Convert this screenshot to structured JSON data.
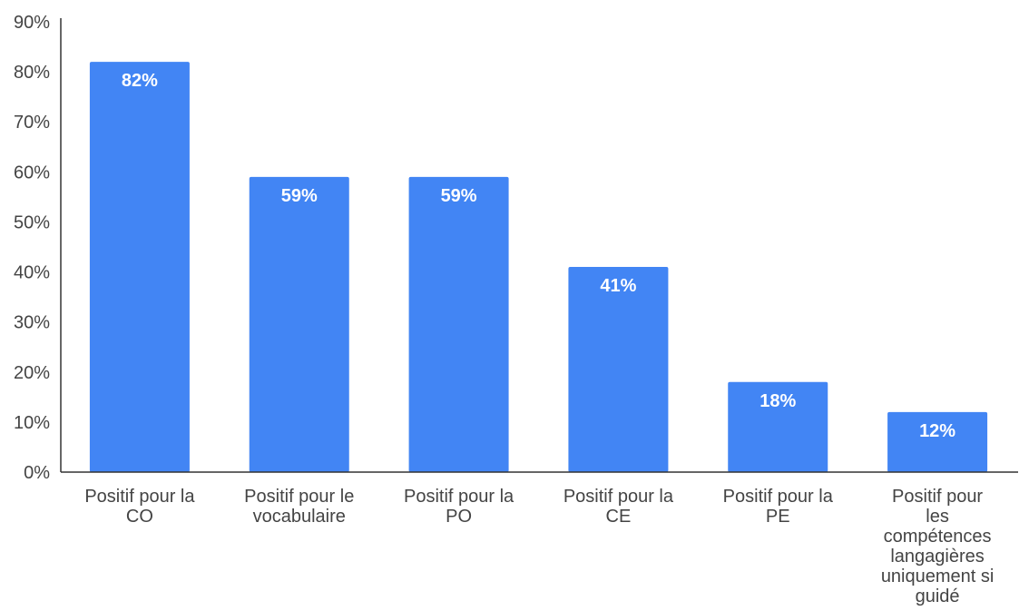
{
  "chart_data": {
    "type": "bar",
    "categories": [
      [
        "Positif pour la",
        "CO"
      ],
      [
        "Positif pour le",
        "vocabulaire"
      ],
      [
        "Positif pour la",
        "PO"
      ],
      [
        "Positif pour la",
        "CE"
      ],
      [
        "Positif pour la",
        "PE"
      ],
      [
        "Positif pour",
        "les",
        "compétences",
        "langagières",
        "uniquement si",
        "guidé"
      ]
    ],
    "values": [
      82,
      59,
      59,
      41,
      18,
      12
    ],
    "data_labels": [
      "82%",
      "59%",
      "59%",
      "41%",
      "18%",
      "12%"
    ],
    "y_ticks": [
      "0%",
      "10%",
      "20%",
      "30%",
      "40%",
      "50%",
      "60%",
      "70%",
      "80%",
      "90%"
    ],
    "ylim": [
      0,
      90
    ],
    "grid": false,
    "bar_color": "#4285f4",
    "axis_color": "#333333"
  }
}
